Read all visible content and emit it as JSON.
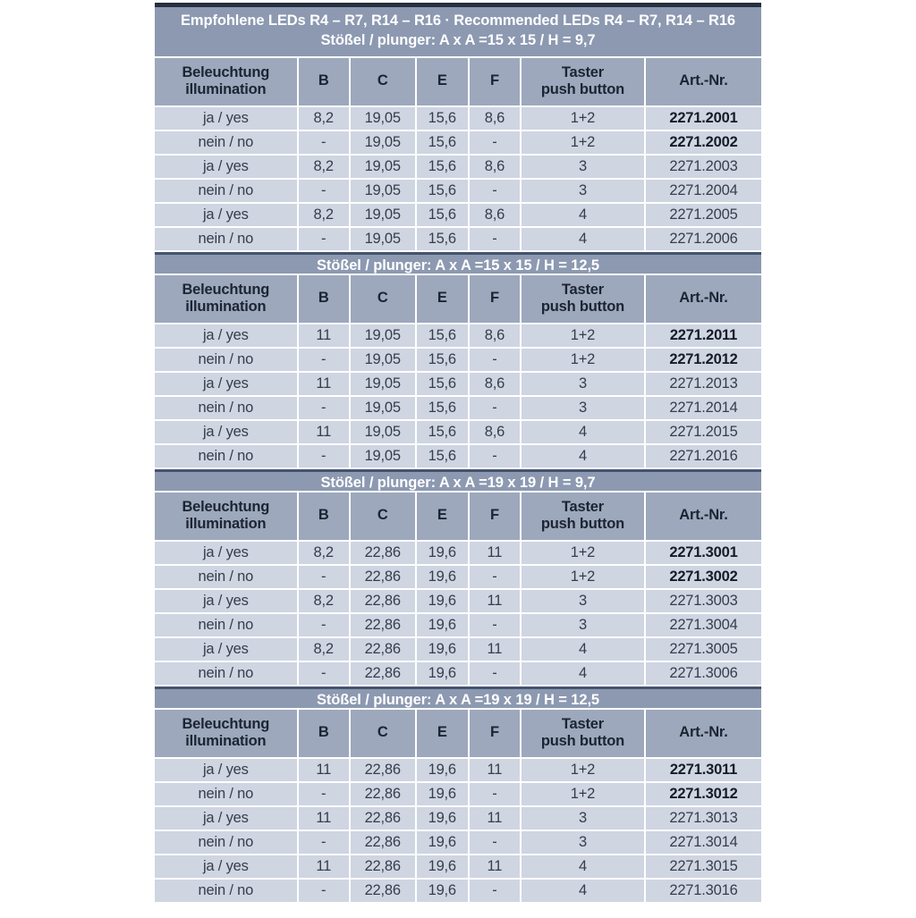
{
  "header": {
    "title": "Empfohlene LEDs R4 – R7, R14 – R16 · Recommended LEDs R4 – R7, R14 – R16"
  },
  "columns": {
    "illumination_line1": "Beleuchtung",
    "illumination_line2": "illumination",
    "b": "B",
    "c": "C",
    "e": "E",
    "f": "F",
    "taster_line1": "Taster",
    "taster_line2": "push button",
    "art": "Art.-Nr."
  },
  "sections": [
    {
      "subtitle": "Stößel / plunger: A x A =15 x 15 / H = 9,7",
      "rows": [
        {
          "illumination": "ja / yes",
          "b": "8,2",
          "c": "19,05",
          "e": "15,6",
          "f": "8,6",
          "taster": "1+2",
          "art": "2271.2001",
          "art_bold": true
        },
        {
          "illumination": "nein / no",
          "b": "-",
          "c": "19,05",
          "e": "15,6",
          "f": "-",
          "taster": "1+2",
          "art": "2271.2002",
          "art_bold": true
        },
        {
          "illumination": "ja / yes",
          "b": "8,2",
          "c": "19,05",
          "e": "15,6",
          "f": "8,6",
          "taster": "3",
          "art": "2271.2003",
          "art_bold": false
        },
        {
          "illumination": "nein / no",
          "b": "-",
          "c": "19,05",
          "e": "15,6",
          "f": "-",
          "taster": "3",
          "art": "2271.2004",
          "art_bold": false
        },
        {
          "illumination": "ja / yes",
          "b": "8,2",
          "c": "19,05",
          "e": "15,6",
          "f": "8,6",
          "taster": "4",
          "art": "2271.2005",
          "art_bold": false
        },
        {
          "illumination": "nein / no",
          "b": "-",
          "c": "19,05",
          "e": "15,6",
          "f": "-",
          "taster": "4",
          "art": "2271.2006",
          "art_bold": false
        }
      ]
    },
    {
      "subtitle": "Stößel / plunger: A x A =15 x 15 / H = 12,5",
      "rows": [
        {
          "illumination": "ja / yes",
          "b": "11",
          "c": "19,05",
          "e": "15,6",
          "f": "8,6",
          "taster": "1+2",
          "art": "2271.2011",
          "art_bold": true
        },
        {
          "illumination": "nein / no",
          "b": "-",
          "c": "19,05",
          "e": "15,6",
          "f": "-",
          "taster": "1+2",
          "art": "2271.2012",
          "art_bold": true
        },
        {
          "illumination": "ja / yes",
          "b": "11",
          "c": "19,05",
          "e": "15,6",
          "f": "8,6",
          "taster": "3",
          "art": "2271.2013",
          "art_bold": false
        },
        {
          "illumination": "nein / no",
          "b": "-",
          "c": "19,05",
          "e": "15,6",
          "f": "-",
          "taster": "3",
          "art": "2271.2014",
          "art_bold": false
        },
        {
          "illumination": "ja / yes",
          "b": "11",
          "c": "19,05",
          "e": "15,6",
          "f": "8,6",
          "taster": "4",
          "art": "2271.2015",
          "art_bold": false
        },
        {
          "illumination": "nein / no",
          "b": "-",
          "c": "19,05",
          "e": "15,6",
          "f": "-",
          "taster": "4",
          "art": "2271.2016",
          "art_bold": false
        }
      ]
    },
    {
      "subtitle": "Stößel / plunger: A x A =19 x 19 / H = 9,7",
      "rows": [
        {
          "illumination": "ja / yes",
          "b": "8,2",
          "c": "22,86",
          "e": "19,6",
          "f": "11",
          "taster": "1+2",
          "art": "2271.3001",
          "art_bold": true
        },
        {
          "illumination": "nein / no",
          "b": "-",
          "c": "22,86",
          "e": "19,6",
          "f": "-",
          "taster": "1+2",
          "art": "2271.3002",
          "art_bold": true
        },
        {
          "illumination": "ja / yes",
          "b": "8,2",
          "c": "22,86",
          "e": "19,6",
          "f": "11",
          "taster": "3",
          "art": "2271.3003",
          "art_bold": false
        },
        {
          "illumination": "nein / no",
          "b": "-",
          "c": "22,86",
          "e": "19,6",
          "f": "-",
          "taster": "3",
          "art": "2271.3004",
          "art_bold": false
        },
        {
          "illumination": "ja / yes",
          "b": "8,2",
          "c": "22,86",
          "e": "19,6",
          "f": "11",
          "taster": "4",
          "art": "2271.3005",
          "art_bold": false
        },
        {
          "illumination": "nein / no",
          "b": "-",
          "c": "22,86",
          "e": "19,6",
          "f": "-",
          "taster": "4",
          "art": "2271.3006",
          "art_bold": false
        }
      ]
    },
    {
      "subtitle": "Stößel / plunger: A x A =19 x 19 / H = 12,5",
      "rows": [
        {
          "illumination": "ja / yes",
          "b": "11",
          "c": "22,86",
          "e": "19,6",
          "f": "11",
          "taster": "1+2",
          "art": "2271.3011",
          "art_bold": true
        },
        {
          "illumination": "nein / no",
          "b": "-",
          "c": "22,86",
          "e": "19,6",
          "f": "-",
          "taster": "1+2",
          "art": "2271.3012",
          "art_bold": true
        },
        {
          "illumination": "ja / yes",
          "b": "11",
          "c": "22,86",
          "e": "19,6",
          "f": "11",
          "taster": "3",
          "art": "2271.3013",
          "art_bold": false
        },
        {
          "illumination": "nein / no",
          "b": "-",
          "c": "22,86",
          "e": "19,6",
          "f": "-",
          "taster": "3",
          "art": "2271.3014",
          "art_bold": false
        },
        {
          "illumination": "ja / yes",
          "b": "11",
          "c": "22,86",
          "e": "19,6",
          "f": "11",
          "taster": "4",
          "art": "2271.3015",
          "art_bold": false
        },
        {
          "illumination": "nein / no",
          "b": "-",
          "c": "22,86",
          "e": "19,6",
          "f": "-",
          "taster": "4",
          "art": "2271.3016",
          "art_bold": false
        }
      ]
    }
  ],
  "colors": {
    "band_bg": "#8c99b1",
    "band_text": "#ffffff",
    "colhead_bg": "#9da8bc",
    "head_ink": "#1c2433",
    "row_bg": "#cfd5e1",
    "row_ink": "#363d4b",
    "bold_ink": "#151b27",
    "top_bar": "#25303f",
    "band_border": "#44536e",
    "page_bg": "#ffffff"
  }
}
